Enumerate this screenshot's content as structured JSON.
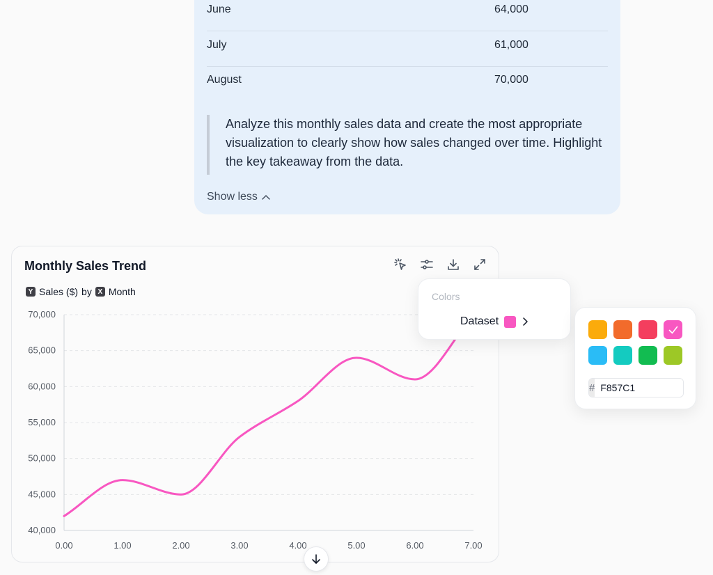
{
  "table": {
    "rows": [
      {
        "month": "June",
        "value": "64,000"
      },
      {
        "month": "July",
        "value": "61,000"
      },
      {
        "month": "August",
        "value": "70,000"
      }
    ]
  },
  "prompt": "Analyze this monthly sales data and create the most appropriate visualization to clearly show how sales changed over time. Highlight the key takeaway from the data.",
  "show_less_label": "Show less",
  "chart_card": {
    "title": "Monthly Sales Trend",
    "y_badge": "Y",
    "y_field": "Sales ($)",
    "by_word": "by",
    "x_badge": "X",
    "x_field": "Month",
    "tools": [
      "select-pointer-icon",
      "sliders-icon",
      "download-icon",
      "expand-icon"
    ]
  },
  "chart_data": {
    "type": "line",
    "x": [
      0,
      1,
      2,
      3,
      4,
      5,
      6,
      7
    ],
    "series": [
      {
        "values": [
          42000,
          47000,
          45000,
          53000,
          58000,
          64000,
          61000,
          70000
        ],
        "color": "#F857C1"
      }
    ],
    "xlim": [
      0,
      7
    ],
    "ylim": [
      40000,
      70000
    ],
    "x_ticks": [
      "0.00",
      "1.00",
      "2.00",
      "3.00",
      "4.00",
      "5.00",
      "6.00",
      "7.00"
    ],
    "y_ticks": [
      "70,000",
      "65,000",
      "60,000",
      "55,000",
      "50,000",
      "45,000",
      "40,000"
    ],
    "grid": true,
    "smooth": true
  },
  "colors_popover": {
    "header": "Colors",
    "dataset_label": "Dataset",
    "dataset_color": "#F857C1"
  },
  "palette": {
    "swatches": [
      "#FBAB0B",
      "#F26B2B",
      "#F43E5E",
      "#F857C1",
      "#2ABCF6",
      "#14CBC0",
      "#12BC51",
      "#9DC826"
    ],
    "selected_index": 3,
    "hex_prefix": "#",
    "hex_value": "F857C1"
  }
}
